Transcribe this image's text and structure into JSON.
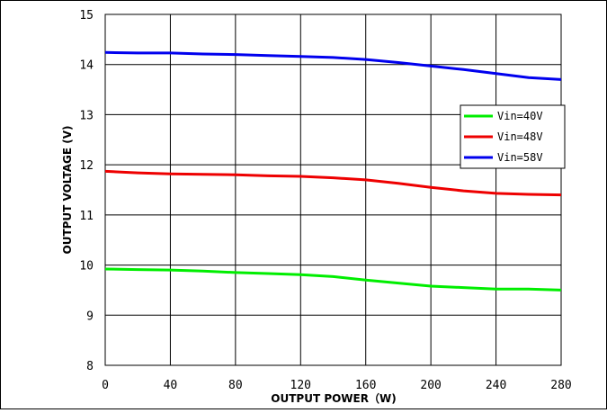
{
  "chart_data": {
    "type": "line",
    "xlabel": "OUTPUT POWER（W)",
    "ylabel": "OUTPUT VOLTAGE (V)",
    "xlim": [
      0,
      280
    ],
    "ylim": [
      8,
      15
    ],
    "x_ticks": [
      "0",
      "40",
      "80",
      "120",
      "160",
      "200",
      "240",
      "280"
    ],
    "y_ticks": [
      "8",
      "9",
      "10",
      "11",
      "12",
      "13",
      "14",
      "15"
    ],
    "grid": true,
    "legend_position": "right",
    "series": [
      {
        "name": "Vin=40V",
        "color": "#00ee00",
        "x": [
          0,
          20,
          40,
          60,
          80,
          100,
          120,
          140,
          160,
          180,
          200,
          220,
          240,
          260,
          280
        ],
        "y": [
          9.92,
          9.91,
          9.9,
          9.88,
          9.85,
          9.83,
          9.81,
          9.77,
          9.7,
          9.64,
          9.58,
          9.55,
          9.52,
          9.52,
          9.5
        ]
      },
      {
        "name": "Vin=48V",
        "color": "#ee0000",
        "x": [
          0,
          20,
          40,
          60,
          80,
          100,
          120,
          140,
          160,
          180,
          200,
          220,
          240,
          260,
          280
        ],
        "y": [
          11.87,
          11.84,
          11.82,
          11.81,
          11.8,
          11.78,
          11.77,
          11.74,
          11.7,
          11.63,
          11.55,
          11.48,
          11.43,
          11.41,
          11.4
        ]
      },
      {
        "name": "Vin=58V",
        "color": "#0000ee",
        "x": [
          0,
          20,
          40,
          60,
          80,
          100,
          120,
          140,
          160,
          180,
          200,
          220,
          240,
          260,
          280
        ],
        "y": [
          14.24,
          14.23,
          14.23,
          14.21,
          14.2,
          14.18,
          14.16,
          14.14,
          14.1,
          14.04,
          13.97,
          13.9,
          13.82,
          13.74,
          13.7
        ]
      }
    ]
  }
}
